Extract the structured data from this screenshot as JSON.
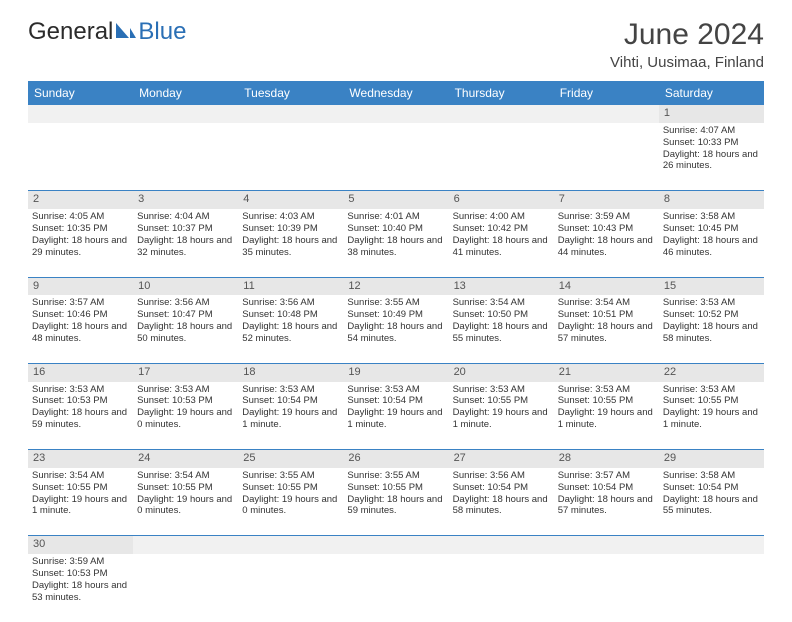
{
  "logo": {
    "text1": "General",
    "text2": "Blue"
  },
  "title": "June 2024",
  "location": "Vihti, Uusimaa, Finland",
  "colors": {
    "header_bg": "#3a82c4",
    "header_fg": "#ffffff",
    "daynum_bg": "#e7e7e7",
    "cell_border": "#3a82c4",
    "text": "#333333",
    "logo_blue": "#2a6fb5"
  },
  "layout": {
    "columns": 7,
    "first_day_index": 6
  },
  "weekdays": [
    "Sunday",
    "Monday",
    "Tuesday",
    "Wednesday",
    "Thursday",
    "Friday",
    "Saturday"
  ],
  "days": [
    {
      "n": 1,
      "sunrise": "4:07 AM",
      "sunset": "10:33 PM",
      "daylight": "18 hours and 26 minutes."
    },
    {
      "n": 2,
      "sunrise": "4:05 AM",
      "sunset": "10:35 PM",
      "daylight": "18 hours and 29 minutes."
    },
    {
      "n": 3,
      "sunrise": "4:04 AM",
      "sunset": "10:37 PM",
      "daylight": "18 hours and 32 minutes."
    },
    {
      "n": 4,
      "sunrise": "4:03 AM",
      "sunset": "10:39 PM",
      "daylight": "18 hours and 35 minutes."
    },
    {
      "n": 5,
      "sunrise": "4:01 AM",
      "sunset": "10:40 PM",
      "daylight": "18 hours and 38 minutes."
    },
    {
      "n": 6,
      "sunrise": "4:00 AM",
      "sunset": "10:42 PM",
      "daylight": "18 hours and 41 minutes."
    },
    {
      "n": 7,
      "sunrise": "3:59 AM",
      "sunset": "10:43 PM",
      "daylight": "18 hours and 44 minutes."
    },
    {
      "n": 8,
      "sunrise": "3:58 AM",
      "sunset": "10:45 PM",
      "daylight": "18 hours and 46 minutes."
    },
    {
      "n": 9,
      "sunrise": "3:57 AM",
      "sunset": "10:46 PM",
      "daylight": "18 hours and 48 minutes."
    },
    {
      "n": 10,
      "sunrise": "3:56 AM",
      "sunset": "10:47 PM",
      "daylight": "18 hours and 50 minutes."
    },
    {
      "n": 11,
      "sunrise": "3:56 AM",
      "sunset": "10:48 PM",
      "daylight": "18 hours and 52 minutes."
    },
    {
      "n": 12,
      "sunrise": "3:55 AM",
      "sunset": "10:49 PM",
      "daylight": "18 hours and 54 minutes."
    },
    {
      "n": 13,
      "sunrise": "3:54 AM",
      "sunset": "10:50 PM",
      "daylight": "18 hours and 55 minutes."
    },
    {
      "n": 14,
      "sunrise": "3:54 AM",
      "sunset": "10:51 PM",
      "daylight": "18 hours and 57 minutes."
    },
    {
      "n": 15,
      "sunrise": "3:53 AM",
      "sunset": "10:52 PM",
      "daylight": "18 hours and 58 minutes."
    },
    {
      "n": 16,
      "sunrise": "3:53 AM",
      "sunset": "10:53 PM",
      "daylight": "18 hours and 59 minutes."
    },
    {
      "n": 17,
      "sunrise": "3:53 AM",
      "sunset": "10:53 PM",
      "daylight": "19 hours and 0 minutes."
    },
    {
      "n": 18,
      "sunrise": "3:53 AM",
      "sunset": "10:54 PM",
      "daylight": "19 hours and 1 minute."
    },
    {
      "n": 19,
      "sunrise": "3:53 AM",
      "sunset": "10:54 PM",
      "daylight": "19 hours and 1 minute."
    },
    {
      "n": 20,
      "sunrise": "3:53 AM",
      "sunset": "10:55 PM",
      "daylight": "19 hours and 1 minute."
    },
    {
      "n": 21,
      "sunrise": "3:53 AM",
      "sunset": "10:55 PM",
      "daylight": "19 hours and 1 minute."
    },
    {
      "n": 22,
      "sunrise": "3:53 AM",
      "sunset": "10:55 PM",
      "daylight": "19 hours and 1 minute."
    },
    {
      "n": 23,
      "sunrise": "3:54 AM",
      "sunset": "10:55 PM",
      "daylight": "19 hours and 1 minute."
    },
    {
      "n": 24,
      "sunrise": "3:54 AM",
      "sunset": "10:55 PM",
      "daylight": "19 hours and 0 minutes."
    },
    {
      "n": 25,
      "sunrise": "3:55 AM",
      "sunset": "10:55 PM",
      "daylight": "19 hours and 0 minutes."
    },
    {
      "n": 26,
      "sunrise": "3:55 AM",
      "sunset": "10:55 PM",
      "daylight": "18 hours and 59 minutes."
    },
    {
      "n": 27,
      "sunrise": "3:56 AM",
      "sunset": "10:54 PM",
      "daylight": "18 hours and 58 minutes."
    },
    {
      "n": 28,
      "sunrise": "3:57 AM",
      "sunset": "10:54 PM",
      "daylight": "18 hours and 57 minutes."
    },
    {
      "n": 29,
      "sunrise": "3:58 AM",
      "sunset": "10:54 PM",
      "daylight": "18 hours and 55 minutes."
    },
    {
      "n": 30,
      "sunrise": "3:59 AM",
      "sunset": "10:53 PM",
      "daylight": "18 hours and 53 minutes."
    }
  ]
}
